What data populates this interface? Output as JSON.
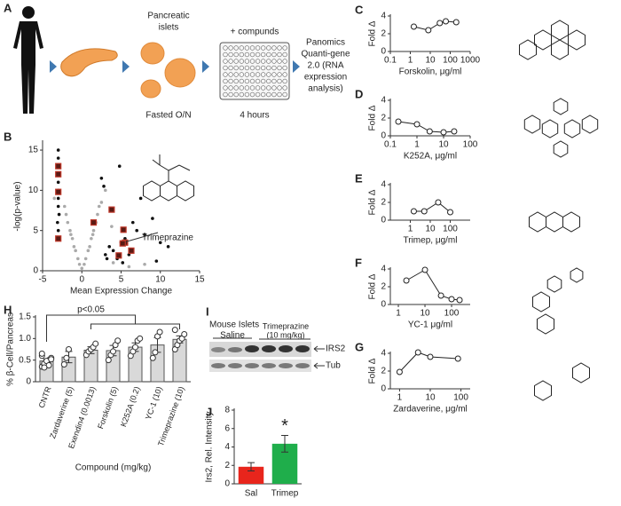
{
  "figure_a": {
    "panel": "A",
    "islets_label": [
      "Pancreatic",
      "islets"
    ],
    "compounds_label": "+ compunds",
    "fasted_label": "Fasted O/N",
    "hours_label": "4 hours",
    "assay_label": [
      "Panomics",
      "Quanti-gene",
      "2.0 (RNA",
      "expression",
      "analysis)"
    ]
  },
  "figure_i": {
    "panel": "I",
    "title": "Mouse Islets",
    "saline_label": "Saline",
    "drug_label": [
      "Trimeprazine",
      "(10 mg/kg)"
    ],
    "band_labels": [
      "IRS2",
      "Tub"
    ]
  },
  "chart_data": [
    {
      "type": "scatter",
      "panel": "B",
      "x_label": "Mean Expression Change",
      "y_label": "-log(p-value)",
      "annotation": "Trimeprazine",
      "xlim": [
        -5,
        15
      ],
      "xticks": [
        -5,
        0,
        5,
        10,
        15
      ],
      "ylim": [
        0,
        16
      ],
      "yticks": [
        0,
        5,
        10,
        15
      ],
      "series": [
        {
          "color": "#aaaaaa",
          "x": [
            -1.5,
            -1,
            -0.5,
            0,
            0.5,
            1,
            1.5,
            -1.2,
            1.2,
            -0.8,
            0.8,
            -2,
            2,
            -1.8,
            1.8,
            -0.3,
            0.3,
            -1.4,
            1.4,
            2.5,
            3,
            -3.5,
            4,
            3.8,
            6,
            8,
            -2.2,
            2.2
          ],
          "y": [
            5,
            3,
            1.5,
            0.3,
            1.5,
            3,
            5,
            4,
            4,
            2.5,
            2.5,
            7,
            7,
            6,
            6,
            0.8,
            0.8,
            4.5,
            4.5,
            8.5,
            10,
            9,
            1,
            5.5,
            0.5,
            0.8,
            8,
            8
          ]
        },
        {
          "color": "#111111",
          "x": [
            -3,
            -3,
            -3,
            -3,
            -3,
            -3,
            -3,
            -3,
            -2.9,
            -3.1,
            -3,
            -3,
            2.5,
            3,
            3.5,
            4,
            4.5,
            5,
            5.5,
            6,
            6.5,
            7,
            8,
            9,
            10,
            11,
            4.8,
            5.2,
            6.2,
            7.5,
            3.2,
            2.8,
            9.5
          ],
          "y": [
            15,
            14,
            13,
            12,
            11,
            10,
            9,
            8,
            7,
            6,
            5,
            4,
            11.5,
            2,
            3,
            2.5,
            1.5,
            3.5,
            4,
            2,
            6,
            5,
            4.5,
            6.5,
            3.5,
            3,
            13,
            1,
            2.5,
            9,
            1.5,
            10.5,
            1.2
          ]
        },
        {
          "color": "#c0392b",
          "x": [
            -3,
            -3,
            -3,
            1.5,
            3.8,
            5.3,
            5.5,
            5.2,
            4.7,
            6.3,
            -3
          ],
          "y": [
            13,
            9.8,
            4,
            6,
            7.6,
            5.1,
            3.5,
            3.4,
            1.9,
            2.5,
            12
          ]
        }
      ]
    },
    {
      "type": "line",
      "panel": "C",
      "log_x": true,
      "x_label": "Forskolin, μg/ml",
      "y_label": "Fold Δ",
      "xlim": [
        0.1,
        1000
      ],
      "xticks": [
        0.1,
        1,
        10,
        100,
        1000
      ],
      "ylim": [
        0,
        4
      ],
      "yticks": [
        0,
        2,
        4
      ],
      "x": [
        1.5,
        8,
        30,
        60,
        200
      ],
      "values": [
        2.8,
        2.4,
        3.2,
        3.4,
        3.3
      ]
    },
    {
      "type": "line",
      "panel": "D",
      "log_x": true,
      "x_label": "K252A, μg/ml",
      "y_label": "Fold Δ",
      "xlim": [
        0.1,
        100
      ],
      "xticks": [
        0.1,
        1,
        10,
        100
      ],
      "ylim": [
        0,
        4
      ],
      "yticks": [
        0,
        2,
        4
      ],
      "x": [
        0.2,
        1,
        3,
        10,
        25
      ],
      "values": [
        1.6,
        1.3,
        0.5,
        0.4,
        0.5
      ]
    },
    {
      "type": "line",
      "panel": "E",
      "log_x": true,
      "x_label": "Trimep, μg/ml",
      "y_label": "Fold Δ",
      "xlim": [
        0.1,
        1000
      ],
      "xticks": [
        1,
        10,
        100
      ],
      "ylim": [
        0,
        4
      ],
      "yticks": [
        0,
        2,
        4
      ],
      "x": [
        1.5,
        5,
        25,
        100
      ],
      "values": [
        1,
        1,
        2,
        0.9
      ]
    },
    {
      "type": "line",
      "panel": "F",
      "log_x": true,
      "x_label": "YC-1  μg/ml",
      "y_label": "Fold Δ",
      "xlim": [
        0.5,
        500
      ],
      "xticks": [
        1,
        10,
        100
      ],
      "ylim": [
        0,
        4
      ],
      "yticks": [
        0,
        2,
        4
      ],
      "x": [
        2,
        10,
        40,
        100,
        200
      ],
      "values": [
        2.7,
        3.9,
        1,
        0.6,
        0.5
      ]
    },
    {
      "type": "line",
      "panel": "G",
      "log_x": true,
      "x_label": "Zardaverine, μg/ml",
      "y_label": "Fold Δ",
      "xlim": [
        0.5,
        200
      ],
      "xticks": [
        1,
        10,
        100
      ],
      "ylim": [
        0,
        4
      ],
      "yticks": [
        0,
        2,
        4
      ],
      "x": [
        1,
        4,
        10,
        80
      ],
      "values": [
        1.9,
        4.1,
        3.6,
        3.4
      ]
    },
    {
      "type": "bar",
      "panel": "H",
      "x_label": "Compound (mg/kg)",
      "y_label": "% β-Cell/Pancreas",
      "annotation": "p<0.05",
      "color": "#d9d9d9",
      "ylim": [
        0,
        1.5
      ],
      "yticks": [
        0,
        0.5,
        {
          "value": 1,
          "label": "1.0"
        },
        1.5
      ],
      "categories": [
        "CNTR",
        "Zardaverine (5)",
        "Exendin4 (0.0013)",
        "Forskolin (5)",
        "K252A (0.2)",
        "YC-1 (10)",
        "Trimeprazine (10)"
      ],
      "values": [
        0.48,
        0.57,
        0.73,
        0.72,
        0.8,
        0.85,
        0.98
      ],
      "errors": [
        0.05,
        0.13,
        0.08,
        0.12,
        0.1,
        0.17,
        0.08
      ],
      "points": [
        [
          0.35,
          0.4,
          0.45,
          0.5,
          0.55,
          0.6,
          0.42,
          0.48,
          0.38,
          0.52,
          0.65,
          0.33
        ],
        [
          0.4,
          0.55,
          0.75
        ],
        [
          0.62,
          0.7,
          0.75,
          0.8,
          0.88
        ],
        [
          0.5,
          0.62,
          0.7,
          0.85,
          0.95
        ],
        [
          0.6,
          0.7,
          0.8,
          0.95,
          1
        ],
        [
          0.55,
          0.68,
          1.05,
          1.15
        ],
        [
          0.75,
          0.85,
          0.95,
          1,
          1.1,
          1.2
        ]
      ]
    },
    {
      "type": "bar",
      "panel": "J",
      "y_label": "Irs2, Rel. Intensity",
      "annotation": "*",
      "colors": [
        "#e8251c",
        "#1fae4b"
      ],
      "ylim": [
        0,
        8
      ],
      "yticks": [
        0,
        2,
        4,
        6,
        8
      ],
      "categories": [
        "Sal",
        "Trimep"
      ],
      "values": [
        1.85,
        4.35
      ],
      "errors": [
        0.45,
        0.9
      ]
    }
  ]
}
